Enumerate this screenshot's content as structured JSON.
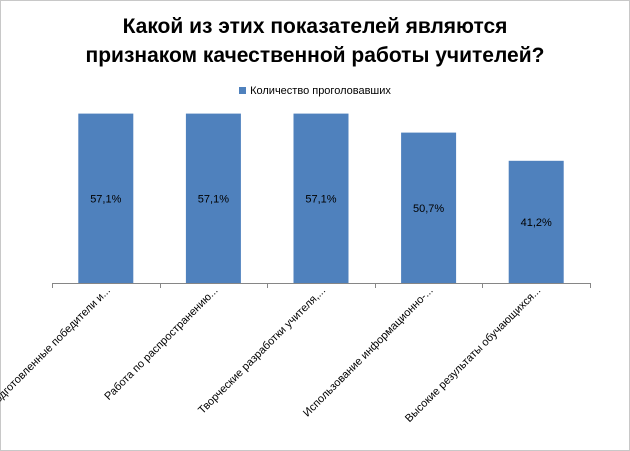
{
  "chart_data": {
    "type": "bar",
    "title_lines": [
      "Какой из этих показателей являются",
      "признаком качественной работы учителей?"
    ],
    "categories": [
      "Подготовленные победители и...",
      "Работа по распространению...",
      "Творческие разработки учителя,...",
      "Использование информационно-...",
      "Высокие результаты обучающихся..."
    ],
    "series": [
      {
        "name": "Количество проголовавших",
        "values": [
          57.1,
          57.1,
          57.1,
          50.7,
          41.2
        ],
        "labels": [
          "57,1%",
          "57,1%",
          "57,1%",
          "50,7%",
          "41,2%"
        ]
      }
    ],
    "ylim": [
      0,
      60
    ],
    "grid": false,
    "legend_position": "top",
    "colors": {
      "bar": "#4f81bd",
      "axis": "#868686"
    }
  }
}
